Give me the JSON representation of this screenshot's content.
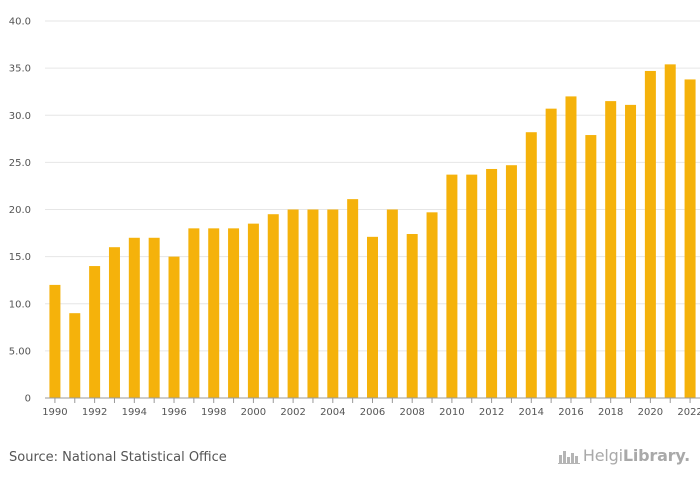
{
  "chart_data": {
    "type": "bar",
    "title": "",
    "xlabel": "",
    "ylabel": "",
    "ylim": [
      0,
      40
    ],
    "yticks": [
      "0",
      "5.00",
      "10.0",
      "15.0",
      "20.0",
      "25.0",
      "30.0",
      "35.0",
      "40.0"
    ],
    "categories": [
      "1990",
      "1991",
      "1992",
      "1993",
      "1994",
      "1995",
      "1996",
      "1997",
      "1998",
      "1999",
      "2000",
      "2001",
      "2002",
      "2003",
      "2004",
      "2005",
      "2006",
      "2007",
      "2008",
      "2009",
      "2010",
      "2011",
      "2012",
      "2013",
      "2014",
      "2015",
      "2016",
      "2017",
      "2018",
      "2019",
      "2020",
      "2021",
      "2022"
    ],
    "x_tick_labels": [
      "1990",
      "1992",
      "1994",
      "1996",
      "1998",
      "2000",
      "2002",
      "2004",
      "2006",
      "2008",
      "2010",
      "2012",
      "2014",
      "2016",
      "2018",
      "2020",
      "2022"
    ],
    "values": [
      12.0,
      9.0,
      14.0,
      16.0,
      17.0,
      17.0,
      15.0,
      18.0,
      18.0,
      18.0,
      18.5,
      19.5,
      20.0,
      20.0,
      20.0,
      21.1,
      17.1,
      20.0,
      17.4,
      19.7,
      23.7,
      23.7,
      24.3,
      24.7,
      28.2,
      30.7,
      32.0,
      27.9,
      31.5,
      31.1,
      34.7,
      35.4,
      33.8
    ],
    "bar_color": "#f5b20b",
    "grid": true,
    "legend": "none"
  },
  "footer": {
    "source": "Source: National Statistical Office",
    "logo_part1": "Helgi",
    "logo_part2": "Library."
  }
}
